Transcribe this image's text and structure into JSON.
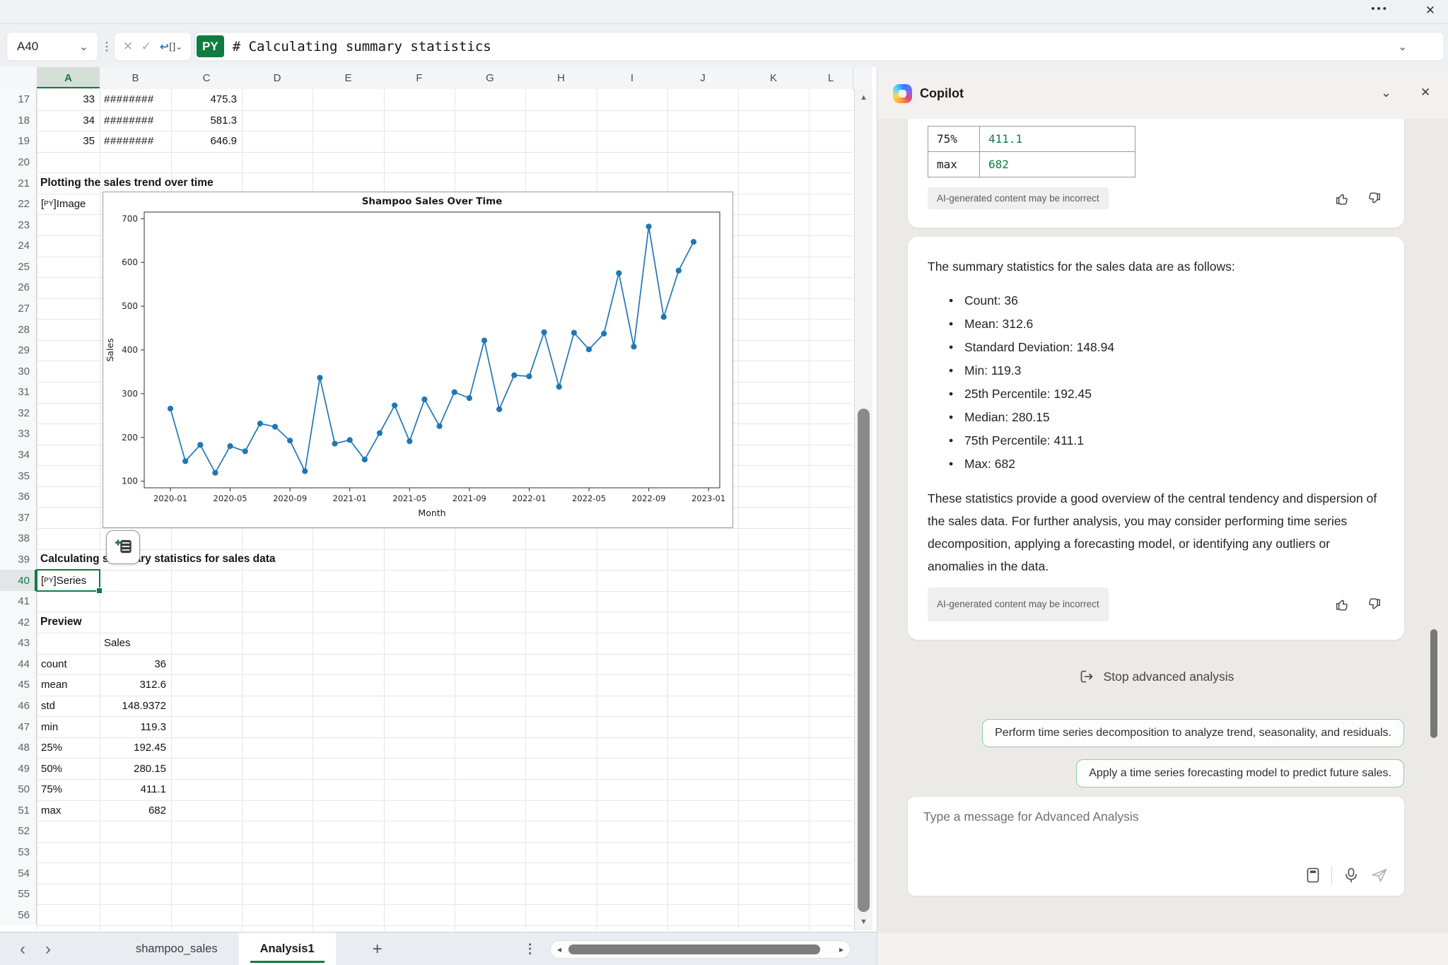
{
  "window": {
    "more_icon": "•••",
    "close_icon": "✕"
  },
  "icons": {
    "chevron_down": "⌄",
    "drag_dots": "⋮",
    "cancel": "✕",
    "check": "✓",
    "insert_arrow": "↪",
    "brackets": "[ ]",
    "tri_up": "▲",
    "tri_down": "▼",
    "tri_left": "◂",
    "tri_right": "▸",
    "chev_left": "‹",
    "chev_right": "›",
    "plus": "+",
    "kebab": "⋮",
    "py_open": "[",
    "py_close": "]"
  },
  "formula_bar": {
    "name_box": "A40",
    "formula_language_badge": "PY",
    "formula": "# Calculating summary statistics"
  },
  "grid": {
    "columns": [
      "A",
      "B",
      "C",
      "D",
      "E",
      "F",
      "G",
      "H",
      "I",
      "J",
      "K",
      "L"
    ],
    "selected_column": "A",
    "selected_row": 40,
    "py_badge": "PY",
    "row_start": 17,
    "row_end": 56,
    "content": {
      "17": {
        "cells": [
          {
            "col": "A",
            "text": "33",
            "align": "r"
          },
          {
            "col": "B",
            "text": "########",
            "align": "l",
            "hashes": true
          },
          {
            "col": "C",
            "text": "475.3",
            "align": "r"
          }
        ]
      },
      "18": {
        "cells": [
          {
            "col": "A",
            "text": "34",
            "align": "r"
          },
          {
            "col": "B",
            "text": "########",
            "align": "l",
            "hashes": true
          },
          {
            "col": "C",
            "text": "581.3",
            "align": "r"
          }
        ]
      },
      "19": {
        "cells": [
          {
            "col": "A",
            "text": "35",
            "align": "r"
          },
          {
            "col": "B",
            "text": "########",
            "align": "l",
            "hashes": true
          },
          {
            "col": "C",
            "text": "646.9",
            "align": "r"
          }
        ]
      },
      "21": {
        "label": "Plotting the sales trend over time"
      },
      "22": {
        "py": "Image"
      },
      "39": {
        "label": "Calculating summary statistics for sales data"
      },
      "40": {
        "py": "Series",
        "selected": true
      },
      "42": {
        "label": "Preview"
      },
      "43": {
        "cells": [
          {
            "col": "B",
            "text": "Sales",
            "align": "l"
          }
        ]
      },
      "44": {
        "cells": [
          {
            "col": "A",
            "text": "count",
            "align": "l"
          },
          {
            "col": "B",
            "text": "36",
            "align": "r"
          }
        ]
      },
      "45": {
        "cells": [
          {
            "col": "A",
            "text": "mean",
            "align": "l"
          },
          {
            "col": "B",
            "text": "312.6",
            "align": "r"
          }
        ]
      },
      "46": {
        "cells": [
          {
            "col": "A",
            "text": "std",
            "align": "l"
          },
          {
            "col": "B",
            "text": "148.9372",
            "align": "r"
          }
        ]
      },
      "47": {
        "cells": [
          {
            "col": "A",
            "text": "min",
            "align": "l"
          },
          {
            "col": "B",
            "text": "119.3",
            "align": "r"
          }
        ]
      },
      "48": {
        "cells": [
          {
            "col": "A",
            "text": "25%",
            "align": "l"
          },
          {
            "col": "B",
            "text": "192.45",
            "align": "r"
          }
        ]
      },
      "49": {
        "cells": [
          {
            "col": "A",
            "text": "50%",
            "align": "l"
          },
          {
            "col": "B",
            "text": "280.15",
            "align": "r"
          }
        ]
      },
      "50": {
        "cells": [
          {
            "col": "A",
            "text": "75%",
            "align": "l"
          },
          {
            "col": "B",
            "text": "411.1",
            "align": "r"
          }
        ]
      },
      "51": {
        "cells": [
          {
            "col": "A",
            "text": "max",
            "align": "l"
          },
          {
            "col": "B",
            "text": "682",
            "align": "r"
          }
        ]
      }
    }
  },
  "chart_data": {
    "type": "line",
    "title": "Shampoo Sales Over Time",
    "xlabel": "Month",
    "ylabel": "Sales",
    "x": [
      "2020-01",
      "2020-02",
      "2020-03",
      "2020-04",
      "2020-05",
      "2020-06",
      "2020-07",
      "2020-08",
      "2020-09",
      "2020-10",
      "2020-11",
      "2020-12",
      "2021-01",
      "2021-02",
      "2021-03",
      "2021-04",
      "2021-05",
      "2021-06",
      "2021-07",
      "2021-08",
      "2021-09",
      "2021-10",
      "2021-11",
      "2021-12",
      "2022-01",
      "2022-02",
      "2022-03",
      "2022-04",
      "2022-05",
      "2022-06",
      "2022-07",
      "2022-08",
      "2022-09",
      "2022-10",
      "2022-11",
      "2022-12"
    ],
    "values": [
      266.0,
      145.9,
      183.1,
      119.3,
      180.3,
      168.5,
      231.8,
      224.5,
      192.8,
      122.9,
      336.5,
      185.9,
      194.3,
      149.5,
      210.1,
      273.3,
      191.4,
      287.0,
      226.0,
      303.6,
      289.9,
      421.6,
      264.5,
      342.3,
      339.7,
      440.4,
      315.9,
      439.3,
      401.3,
      437.4,
      575.5,
      407.6,
      682.0,
      475.3,
      581.3,
      646.9
    ],
    "x_tick_labels": [
      "2020-01",
      "2020-05",
      "2020-09",
      "2021-01",
      "2021-05",
      "2021-09",
      "2022-01",
      "2022-05",
      "2022-09",
      "2023-01"
    ],
    "x_tick_index": [
      0,
      4,
      8,
      12,
      16,
      20,
      24,
      28,
      32,
      36
    ],
    "y_ticks": [
      100,
      200,
      300,
      400,
      500,
      600,
      700
    ],
    "ylim": [
      85,
      715
    ],
    "grid": false,
    "line_color": "#1f77b4",
    "marker": "o"
  },
  "sheet_tabs": {
    "tabs": [
      {
        "label": "shampoo_sales",
        "active": false
      },
      {
        "label": "Analysis1",
        "active": true
      }
    ]
  },
  "copilot": {
    "title": "Copilot",
    "result_table": {
      "rows": [
        [
          "75%",
          "411.1"
        ],
        [
          "max",
          "682"
        ]
      ]
    },
    "disclaimer": "AI-generated content may be incorrect",
    "message": {
      "intro": "The summary statistics for the sales data are as follows:",
      "bullets": [
        "Count: 36",
        "Mean: 312.6",
        "Standard Deviation: 148.94",
        "Min: 119.3",
        "25th Percentile: 192.45",
        "Median: 280.15",
        "75th Percentile: 411.1",
        "Max: 682"
      ],
      "outro": "These statistics provide a good overview of the central tendency and dispersion of the sales data. For further analysis, you may consider performing time series decomposition, applying a forecasting model, or identifying any outliers or anomalies in the data."
    },
    "stop_button": "Stop advanced analysis",
    "suggestions": [
      "Perform time series decomposition to analyze trend, seasonality, and residuals.",
      "Apply a time series forecasting model to predict future sales."
    ],
    "input_placeholder": "Type a message for Advanced Analysis"
  },
  "colors": {
    "accent_green": "#107C41",
    "chart_line": "#1f77b4",
    "value_green": "#107C41"
  }
}
